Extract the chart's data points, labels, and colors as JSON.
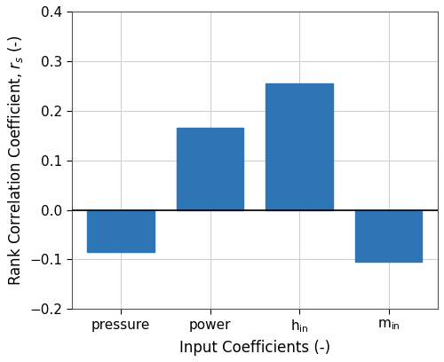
{
  "categories": [
    "pressure",
    "power",
    "h$_\\mathrm{in}$",
    "m$_\\mathrm{in}$"
  ],
  "values": [
    -0.085,
    0.165,
    0.255,
    -0.105
  ],
  "bar_color": "#2e75b6",
  "ylabel": "Rank Correlation Coefficient, $r_s$ (-)",
  "xlabel": "Input Coefficients (-)",
  "ylim": [
    -0.2,
    0.4
  ],
  "yticks": [
    -0.2,
    -0.1,
    0,
    0.1,
    0.2,
    0.3,
    0.4
  ],
  "bar_width": 0.75,
  "tick_fontsize": 11,
  "label_fontsize": 12,
  "bar_positions": [
    0,
    1,
    2,
    3
  ]
}
